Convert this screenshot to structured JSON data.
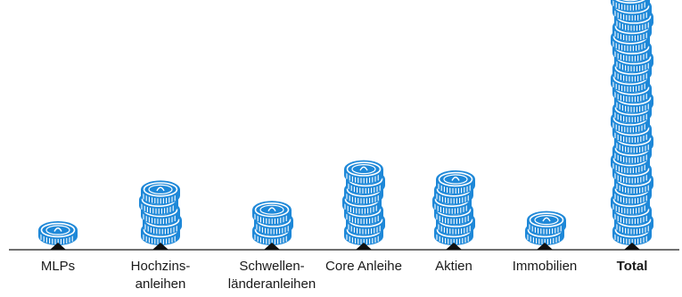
{
  "chart_data": {
    "type": "bar",
    "style": "pictograph-coin-stacks",
    "categories": [
      {
        "label_lines": [
          "MLPs"
        ],
        "emphasis": false
      },
      {
        "label_lines": [
          "Hochzins-",
          "anleihen"
        ],
        "emphasis": false
      },
      {
        "label_lines": [
          "Schwellen-",
          "länderanleihen"
        ],
        "emphasis": false
      },
      {
        "label_lines": [
          "Core Anleihe"
        ],
        "emphasis": false
      },
      {
        "label_lines": [
          "Aktien"
        ],
        "emphasis": false
      },
      {
        "label_lines": [
          "Immobilien"
        ],
        "emphasis": false
      },
      {
        "label_lines": [
          "Total"
        ],
        "emphasis": true
      }
    ],
    "values": [
      1,
      5,
      3,
      7,
      6,
      2,
      24
    ],
    "unit": "coins",
    "colors": {
      "coin": "#1e88d8",
      "coin_light": "#ffffff",
      "axis": "#1a1a1a",
      "marker": "#111111"
    }
  }
}
